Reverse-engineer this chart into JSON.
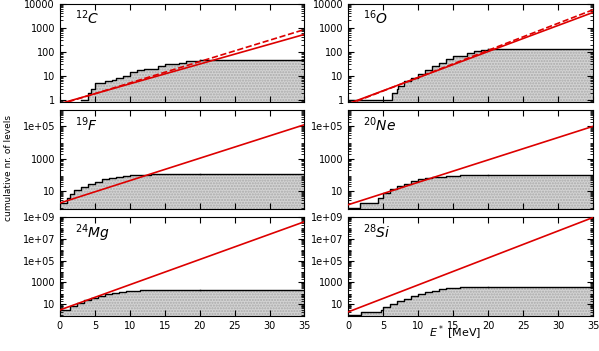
{
  "panels": [
    {
      "label_superscript": "12",
      "label_element": "C",
      "ylim": [
        0.8,
        10000.0
      ],
      "line_style": "dashed",
      "hist_steps_x": [
        3.0,
        4.0,
        4.4,
        5.0,
        6.5,
        7.5,
        8.0,
        9.0,
        10.0,
        11.0,
        12.0,
        14.0,
        15.0,
        17.0,
        18.0,
        20.0,
        35.5
      ],
      "hist_steps_y": [
        1,
        2,
        3,
        5,
        6,
        7,
        8,
        10,
        14,
        17,
        20,
        25,
        30,
        35,
        40,
        47,
        47
      ],
      "red_line_log_slope": 0.0886,
      "red_line_log_intercept": -0.18,
      "solid_line_log_slope": 0.082,
      "solid_line_log_intercept": -0.15
    },
    {
      "label_superscript": "16",
      "label_element": "O",
      "ylim": [
        0.8,
        10000.0
      ],
      "line_style": "dashed",
      "hist_steps_x": [
        0.0,
        6.2,
        6.9,
        7.1,
        8.0,
        9.0,
        10.0,
        11.0,
        12.0,
        13.0,
        14.0,
        15.0,
        17.0,
        18.0,
        19.0,
        20.0,
        35.5
      ],
      "hist_steps_y": [
        1,
        2,
        3,
        4,
        6,
        8,
        12,
        18,
        25,
        35,
        50,
        70,
        90,
        110,
        120,
        130,
        130
      ],
      "red_line_log_slope": 0.112,
      "red_line_log_intercept": -0.18,
      "solid_line_log_slope": 0.108,
      "solid_line_log_intercept": -0.15
    },
    {
      "label_superscript": "19",
      "label_element": "F",
      "ylim": [
        0.8,
        1000000.0
      ],
      "line_style": "solid",
      "hist_steps_x": [
        0.0,
        1.0,
        1.5,
        2.0,
        3.0,
        4.0,
        5.0,
        6.0,
        7.0,
        8.0,
        9.0,
        10.0,
        11.0,
        12.0,
        13.0,
        15.0,
        17.0,
        20.0,
        35.5
      ],
      "hist_steps_y": [
        2,
        4,
        7,
        12,
        18,
        28,
        40,
        55,
        65,
        75,
        85,
        95,
        100,
        105,
        110,
        115,
        118,
        120,
        120
      ],
      "red_line_log_slope": 0.138,
      "red_line_log_intercept": 0.28,
      "solid_line_log_slope": 0.0,
      "solid_line_log_intercept": 0.0
    },
    {
      "label_superscript": "20",
      "label_element": "Ne",
      "ylim": [
        0.8,
        1000000.0
      ],
      "line_style": "solid",
      "hist_steps_x": [
        0.0,
        1.6,
        4.2,
        5.0,
        6.0,
        7.0,
        8.0,
        9.0,
        10.0,
        11.0,
        12.0,
        13.0,
        14.0,
        15.0,
        16.0,
        18.0,
        20.0,
        35.5
      ],
      "hist_steps_y": [
        1,
        2,
        4,
        8,
        14,
        22,
        30,
        42,
        55,
        65,
        75,
        82,
        88,
        92,
        96,
        99,
        100,
        100
      ],
      "red_line_log_slope": 0.138,
      "red_line_log_intercept": 0.18,
      "solid_line_log_slope": 0.0,
      "solid_line_log_intercept": 0.0
    },
    {
      "label_superscript": "24",
      "label_element": "Mg",
      "ylim": [
        0.8,
        1000000000.0
      ],
      "line_style": "solid",
      "hist_steps_x": [
        0.0,
        1.4,
        2.5,
        3.5,
        4.5,
        5.5,
        6.5,
        7.5,
        8.5,
        9.5,
        10.5,
        11.5,
        12.5,
        14.0,
        16.0,
        18.0,
        20.0,
        35.5
      ],
      "hist_steps_y": [
        3,
        6,
        12,
        22,
        35,
        55,
        75,
        100,
        125,
        148,
        162,
        175,
        185,
        193,
        197,
        199,
        200,
        200
      ],
      "red_line_log_slope": 0.232,
      "red_line_log_intercept": 0.45,
      "solid_line_log_slope": 0.0,
      "solid_line_log_intercept": 0.0
    },
    {
      "label_superscript": "28",
      "label_element": "Si",
      "ylim": [
        0.8,
        1000000000.0
      ],
      "line_style": "solid",
      "hist_steps_x": [
        0.0,
        1.78,
        4.6,
        5.0,
        6.0,
        7.0,
        8.0,
        9.0,
        10.0,
        11.0,
        12.0,
        13.0,
        14.0,
        15.0,
        16.0,
        17.0,
        18.0,
        20.0,
        35.5
      ],
      "hist_steps_y": [
        1,
        2,
        3,
        5,
        10,
        18,
        30,
        50,
        80,
        120,
        170,
        220,
        270,
        310,
        340,
        365,
        390,
        400,
        400
      ],
      "red_line_log_slope": 0.248,
      "red_line_log_intercept": 0.28,
      "solid_line_log_slope": 0.0,
      "solid_line_log_intercept": 0.0
    }
  ],
  "xlim": [
    0,
    35
  ],
  "xticks": [
    0,
    5,
    10,
    15,
    20,
    25,
    30,
    35
  ],
  "xlabel": "$E^*$ [MeV]",
  "ylabel": "cumulative nr. of levels",
  "background_color": "white",
  "hist_fill_color": "#d3d3d3",
  "hist_edge_color": "black",
  "red_color": "#dd0000",
  "subplot_rows": 3,
  "subplot_cols": 2
}
